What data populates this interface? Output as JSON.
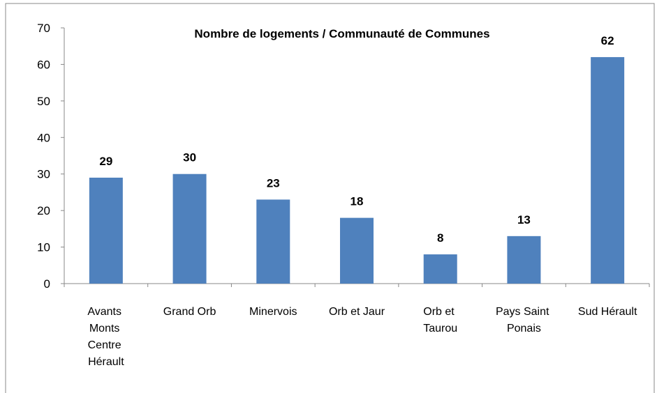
{
  "chart_data": {
    "type": "bar",
    "title": "Nombre de logements / Communauté de Communes",
    "categories": [
      "Avants Monts Centre Hérault",
      "Grand Orb",
      "Minervois",
      "Orb et Jaur",
      "Orb et Taurou",
      "Pays Saint Ponais",
      "Sud Hérault"
    ],
    "values": [
      29,
      30,
      23,
      18,
      8,
      13,
      62
    ],
    "color": "#4f81bd",
    "ylim": [
      0,
      70
    ],
    "yticks": [
      0,
      10,
      20,
      30,
      40,
      50,
      60,
      70
    ],
    "grid": false
  }
}
